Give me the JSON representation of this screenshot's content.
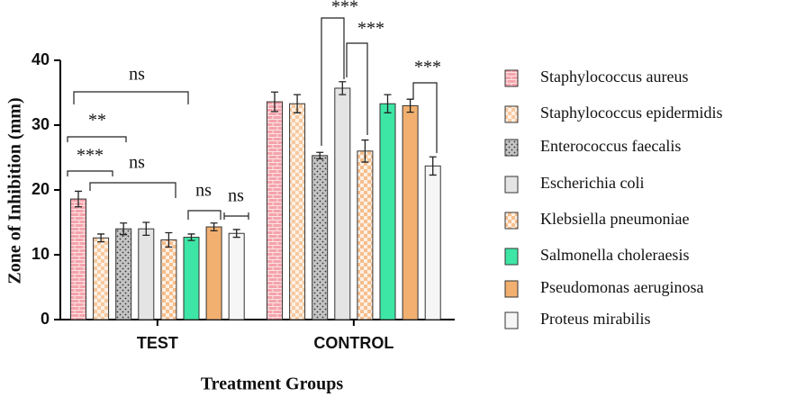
{
  "chart_data": {
    "type": "bar",
    "x_label": "Treatment Groups",
    "y_label": "Zone of Inhibition (mm)",
    "categories": [
      "TEST",
      "CONTROL"
    ],
    "ylim": [
      0,
      40
    ],
    "yticks": [
      0,
      10,
      20,
      30,
      40
    ],
    "series": [
      {
        "name": "Staphylococcus aureus",
        "color": "#f4a3ab",
        "pattern": "brick",
        "values": [
          18.6,
          33.6
        ],
        "errors": [
          1.2,
          1.5
        ]
      },
      {
        "name": "Staphylococcus epidermidis",
        "color": "#f7c9a0",
        "pattern": "checker",
        "values": [
          12.6,
          33.3
        ],
        "errors": [
          0.6,
          1.4
        ]
      },
      {
        "name": "Enterococcus faecalis",
        "color": "#c4c4c4",
        "pattern": "dots",
        "values": [
          14.0,
          25.3
        ],
        "errors": [
          0.9,
          0.5
        ]
      },
      {
        "name": "Escherichia coli",
        "color": "#e4e4e4",
        "values": [
          14.0,
          35.7
        ],
        "errors": [
          1.0,
          1.0
        ]
      },
      {
        "name": "Klebsiella pneumoniae",
        "color": "#f6be8c",
        "pattern": "checker",
        "values": [
          12.3,
          26.0
        ],
        "errors": [
          1.1,
          1.7
        ]
      },
      {
        "name": "Salmonella choleraesis",
        "color": "#3ee6a6",
        "values": [
          12.7,
          33.3
        ],
        "errors": [
          0.5,
          1.4
        ]
      },
      {
        "name": "Pseudomonas aeruginosa",
        "color": "#f2b070",
        "values": [
          14.3,
          33.0
        ],
        "errors": [
          0.6,
          1.0
        ]
      },
      {
        "name": "Proteus mirabilis",
        "color": "#f6f6f6",
        "values": [
          13.3,
          23.7
        ],
        "errors": [
          0.6,
          1.4
        ]
      }
    ],
    "annotations": [
      "ns",
      "**",
      "***",
      "ns",
      "ns",
      "ns",
      "***",
      "***",
      "***"
    ]
  }
}
